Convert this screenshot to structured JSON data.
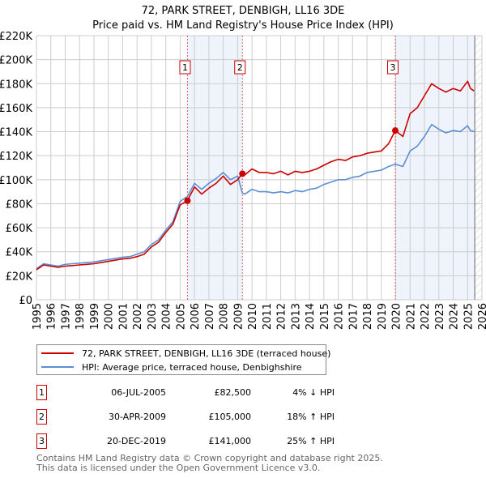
{
  "chart_data": {
    "type": "line",
    "title": "72, PARK STREET, DENBIGH, LL16 3DE",
    "subtitle": "Price paid vs. HM Land Registry's House Price Index (HPI)",
    "xlabel": "",
    "ylabel": "",
    "xlim": [
      1995,
      2026
    ],
    "ylim": [
      0,
      220000
    ],
    "grid": true,
    "y_ticks": [
      0,
      20000,
      40000,
      60000,
      80000,
      100000,
      120000,
      140000,
      160000,
      180000,
      200000,
      220000
    ],
    "y_tick_labels": [
      "£0",
      "£20K",
      "£40K",
      "£60K",
      "£80K",
      "£100K",
      "£120K",
      "£140K",
      "£160K",
      "£180K",
      "£200K",
      "£220K"
    ],
    "x_ticks": [
      "1995",
      "1996",
      "1997",
      "1998",
      "1999",
      "2000",
      "2001",
      "2002",
      "2003",
      "2004",
      "2005",
      "2006",
      "2007",
      "2008",
      "2009",
      "2010",
      "2011",
      "2012",
      "2013",
      "2014",
      "2015",
      "2016",
      "2017",
      "2018",
      "2019",
      "2020",
      "2021",
      "2022",
      "2023",
      "2024",
      "2025",
      "2026"
    ],
    "x": [
      1995,
      1995.5,
      1996,
      1996.5,
      1997,
      1997.5,
      1998,
      1998.5,
      1999,
      1999.5,
      2000,
      2000.5,
      2001,
      2001.5,
      2002,
      2002.5,
      2003,
      2003.5,
      2004,
      2004.5,
      2005,
      2005.5,
      2006,
      2006.5,
      2007,
      2007.5,
      2008,
      2008.5,
      2009,
      2009.33,
      2009.5,
      2010,
      2010.5,
      2011,
      2011.5,
      2012,
      2012.5,
      2013,
      2013.5,
      2014,
      2014.5,
      2015,
      2015.5,
      2016,
      2016.5,
      2017,
      2017.5,
      2018,
      2018.5,
      2019,
      2019.5,
      2019.97,
      2020.5,
      2021,
      2021.5,
      2022,
      2022.5,
      2023,
      2023.5,
      2024,
      2024.5,
      2025,
      2025.2,
      2025.45
    ],
    "series": [
      {
        "name": "72, PARK STREET, DENBIGH, LL16 3DE (terraced house)",
        "color": "#cc0000",
        "values": [
          25000,
          29000,
          28000,
          27000,
          28000,
          28500,
          29000,
          29500,
          30000,
          31000,
          32000,
          33000,
          34000,
          34500,
          36000,
          38000,
          44000,
          48000,
          56000,
          63000,
          79000,
          82500,
          94000,
          88000,
          93000,
          97000,
          103000,
          96000,
          100000,
          105000,
          104000,
          109000,
          106000,
          106000,
          105000,
          107000,
          104000,
          107000,
          106000,
          107000,
          109000,
          112000,
          115000,
          117000,
          116000,
          119000,
          120000,
          122000,
          123000,
          124000,
          130000,
          141000,
          136000,
          155000,
          160000,
          170000,
          180000,
          176000,
          173000,
          176000,
          174000,
          182000,
          176000,
          174000
        ]
      },
      {
        "name": "HPI: Average price, terraced house, Denbighshire",
        "color": "#5b8fd4",
        "values": [
          26000,
          30000,
          29000,
          28000,
          29500,
          30000,
          30500,
          31000,
          31500,
          32500,
          33500,
          34500,
          35500,
          36000,
          38000,
          40000,
          46000,
          50000,
          58000,
          65000,
          82000,
          86000,
          97000,
          92000,
          97000,
          101000,
          106000,
          100000,
          103000,
          89000,
          88000,
          92000,
          90000,
          90000,
          89000,
          90000,
          89000,
          91000,
          90000,
          92000,
          93000,
          96000,
          98000,
          100000,
          100000,
          102000,
          103000,
          106000,
          107000,
          108000,
          111000,
          113000,
          111000,
          124000,
          128000,
          136000,
          146000,
          142000,
          139000,
          141000,
          140000,
          145000,
          141000,
          140000
        ]
      }
    ],
    "sales": [
      {
        "id": "1",
        "x": 2005.51,
        "value": 82500,
        "date": "06-JUL-2005",
        "price": "£82,500",
        "hpi": "4% ↓ HPI"
      },
      {
        "id": "2",
        "x": 2009.33,
        "value": 105000,
        "date": "30-APR-2009",
        "price": "£105,000",
        "hpi": "18% ↑ HPI"
      },
      {
        "id": "3",
        "x": 2019.97,
        "value": 141000,
        "date": "20-DEC-2019",
        "price": "£141,000",
        "hpi": "25% ↑ HPI"
      }
    ],
    "shaded_ranges": [
      [
        2005.51,
        2009.33
      ],
      [
        2019.97,
        2025.5
      ]
    ],
    "forecast_hatch_start": 2025.5,
    "legend_placement": "below"
  },
  "footer": {
    "line1": "Contains HM Land Registry data © Crown copyright and database right 2025.",
    "line2": "This data is licensed under the Open Government Licence v3.0."
  }
}
